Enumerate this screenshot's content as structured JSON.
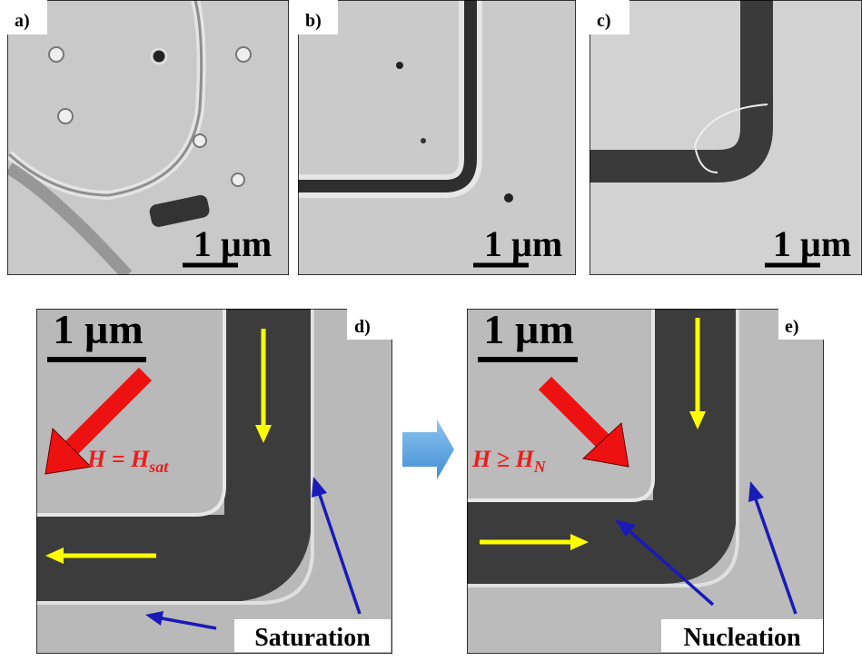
{
  "panels": [
    {
      "label": "a)",
      "scale_bar": "1 µm"
    },
    {
      "label": "b)",
      "scale_bar": "1 µm"
    },
    {
      "label": "c)",
      "scale_bar": "1 µm"
    },
    {
      "label": "d)",
      "scale_bar": "1 µm",
      "field": {
        "main": "H = H",
        "sub": "sat"
      },
      "annotation": "Saturation"
    },
    {
      "label": "e)",
      "scale_bar": "1 µm",
      "field": {
        "main": "H ≥ H",
        "sub": "N"
      },
      "annotation": "Nucleation"
    }
  ]
}
